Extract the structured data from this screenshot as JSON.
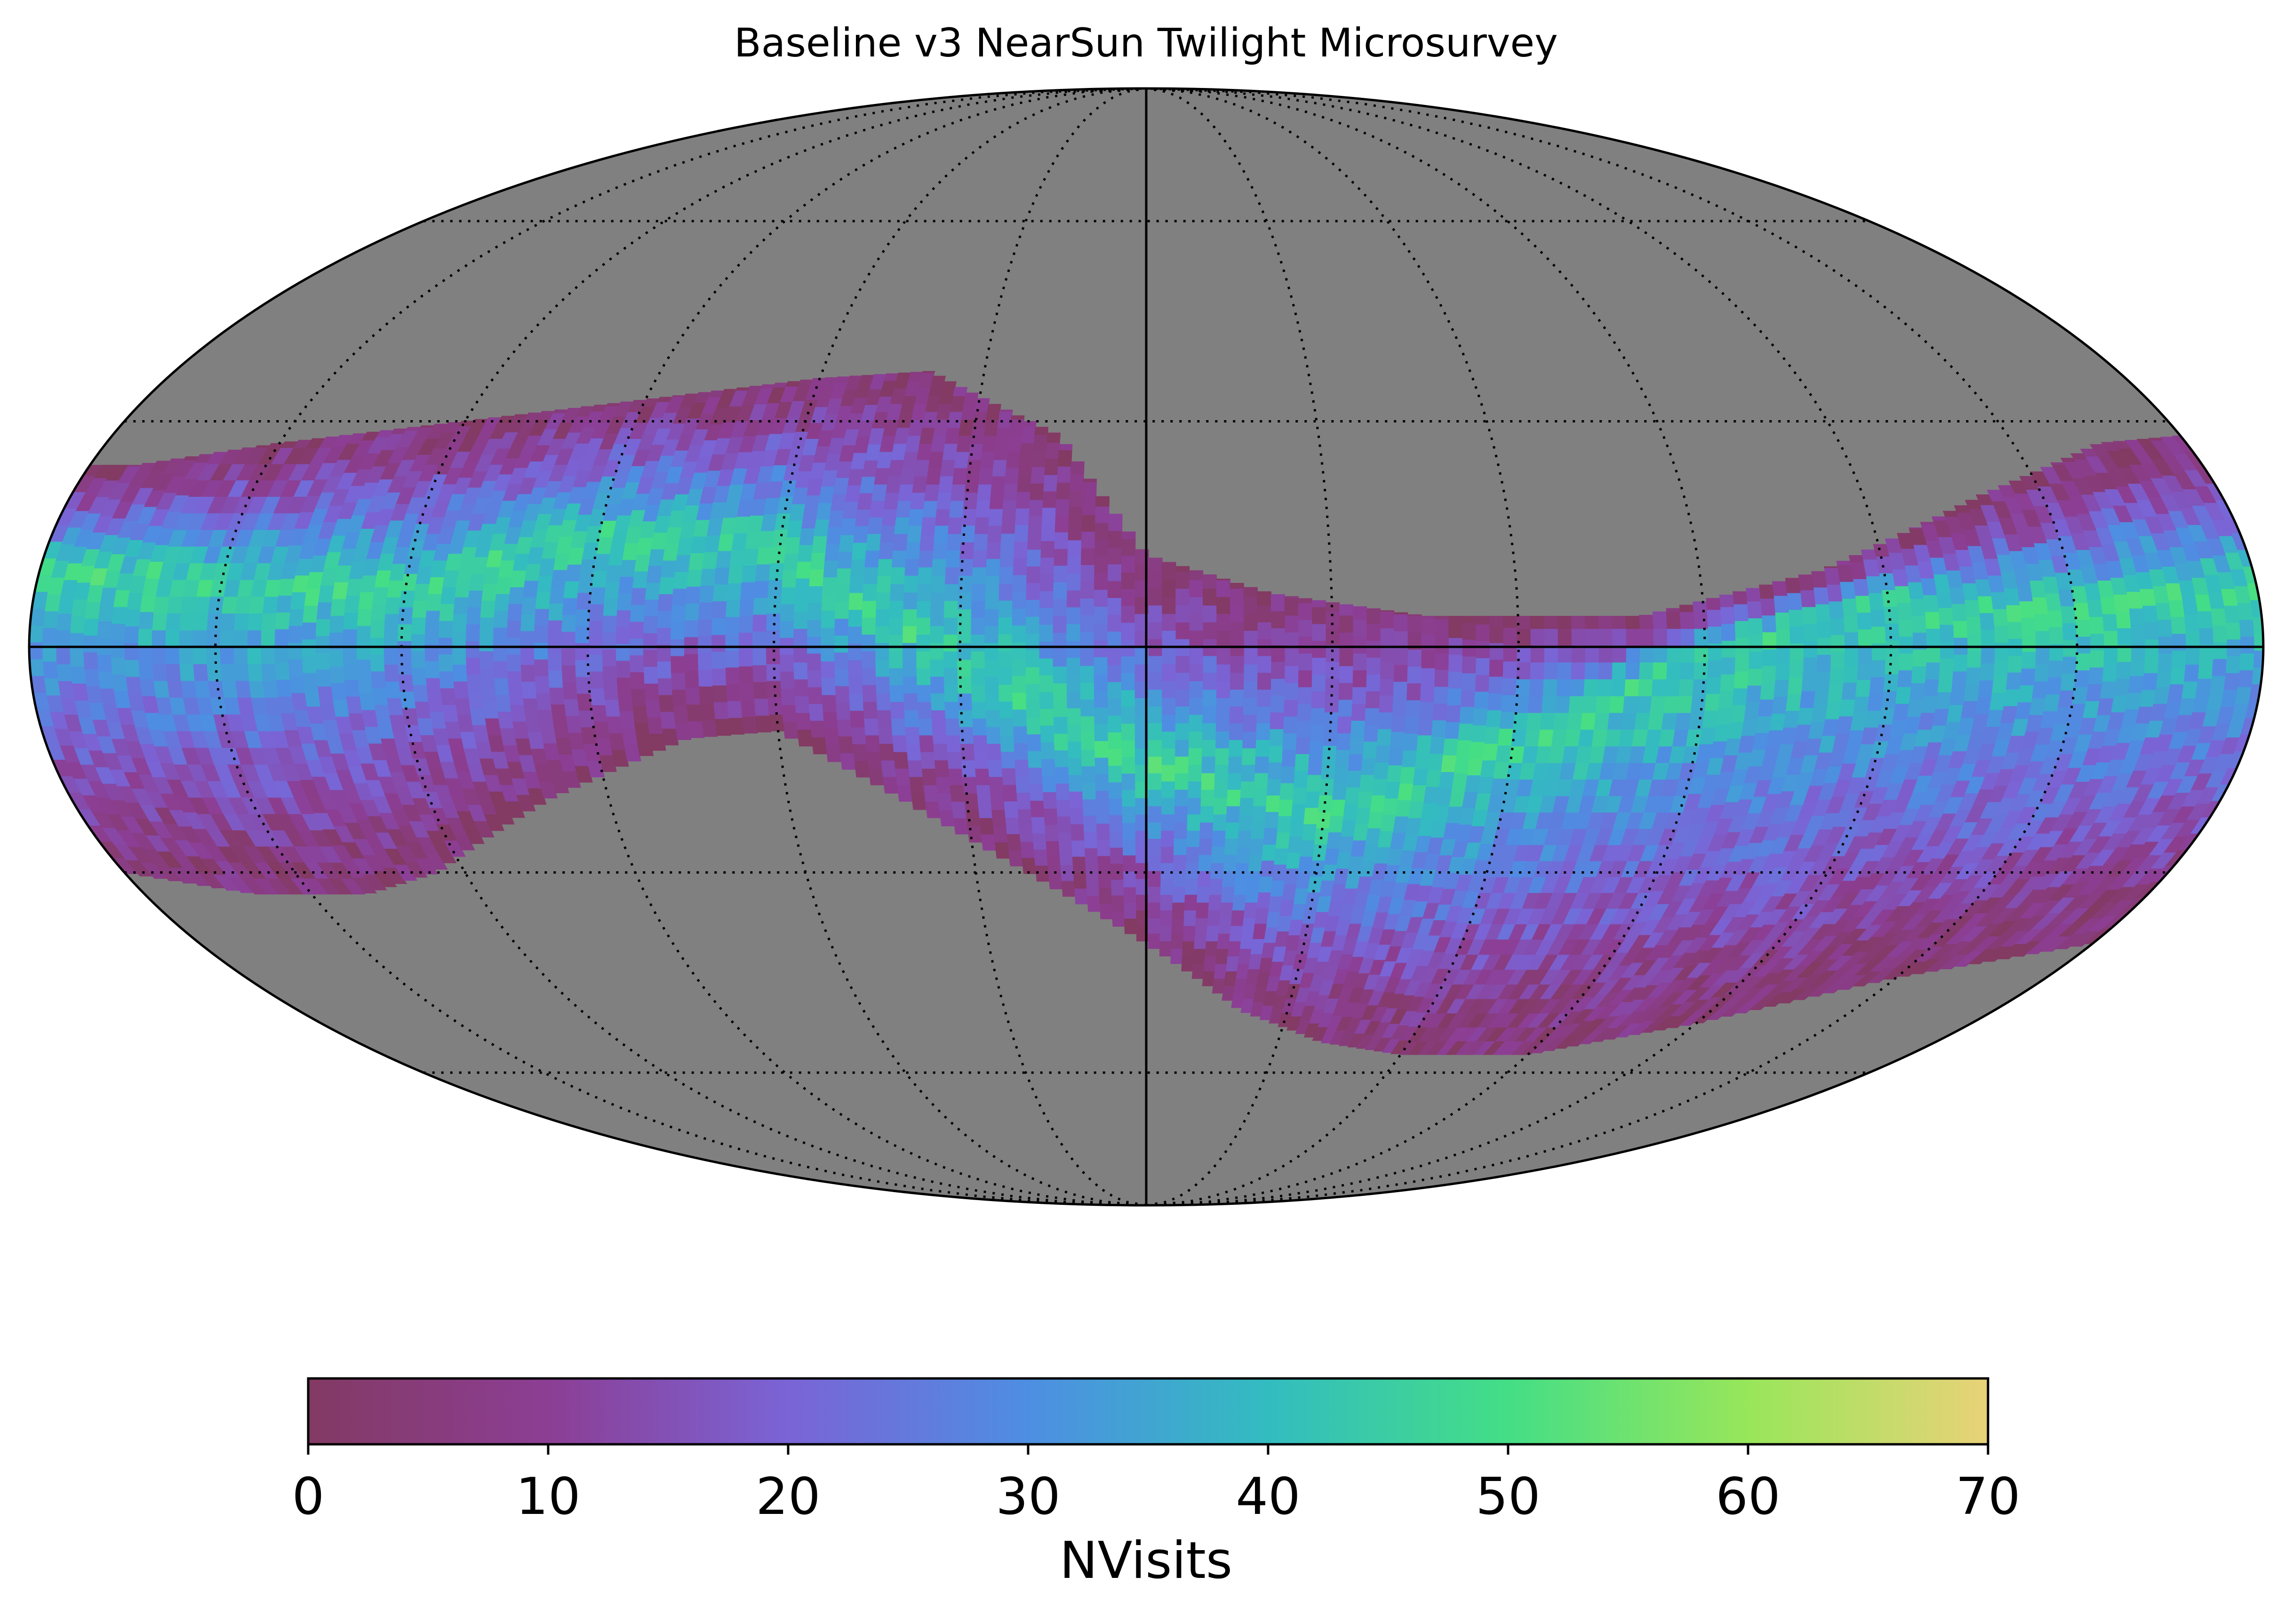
{
  "chart_data": {
    "type": "heatmap",
    "projection": "mollweide",
    "title": "Baseline v3 NearSun Twilight Microsurvey",
    "colorbar": {
      "label": "NVisits",
      "min": 0,
      "max": 70,
      "ticks": [
        "0",
        "10",
        "20",
        "30",
        "40",
        "50",
        "60",
        "70"
      ],
      "orientation": "horizontal",
      "stops": [
        "#833a63",
        "#8c3e94",
        "#7a64d6",
        "#4e8ee2",
        "#33bcc0",
        "#44de86",
        "#98e65a",
        "#e9d278"
      ]
    },
    "graticule": {
      "meridian_step_deg": 30,
      "parallel_step_deg": 30,
      "style": "dotted"
    },
    "background_color": "#808080",
    "band": {
      "description_values": "visits band following ecliptic",
      "upper_edge_lat": [
        [
          -180,
          24
        ],
        [
          -172,
          24
        ],
        [
          -150,
          27
        ],
        [
          -120,
          30
        ],
        [
          -90,
          33
        ],
        [
          -60,
          36
        ],
        [
          -40,
          37
        ],
        [
          -15,
          28
        ],
        [
          0,
          12
        ],
        [
          20,
          7
        ],
        [
          45,
          4
        ],
        [
          80,
          4
        ],
        [
          110,
          10
        ],
        [
          140,
          20
        ],
        [
          165,
          27
        ],
        [
          180,
          28
        ]
      ],
      "lower_edge_lat": [
        [
          -180,
          -30
        ],
        [
          -160,
          -33
        ],
        [
          -140,
          -33
        ],
        [
          -125,
          -30
        ],
        [
          -100,
          -20
        ],
        [
          -75,
          -12
        ],
        [
          -60,
          -11
        ],
        [
          -45,
          -18
        ],
        [
          -25,
          -28
        ],
        [
          0,
          -40
        ],
        [
          20,
          -50
        ],
        [
          40,
          -55
        ],
        [
          60,
          -57
        ],
        [
          90,
          -57
        ],
        [
          120,
          -52
        ],
        [
          150,
          -45
        ],
        [
          180,
          -40
        ]
      ],
      "peak_track": [
        [
          -180,
          10
        ],
        [
          -120,
          8
        ],
        [
          -90,
          15
        ],
        [
          -60,
          12
        ],
        [
          -30,
          -2
        ],
        [
          -10,
          -12
        ],
        [
          0,
          -15
        ],
        [
          30,
          -22
        ],
        [
          60,
          -12
        ],
        [
          90,
          0
        ],
        [
          120,
          6
        ],
        [
          150,
          5
        ],
        [
          180,
          8
        ]
      ],
      "peak_value": 54,
      "edge_value": 4
    }
  }
}
